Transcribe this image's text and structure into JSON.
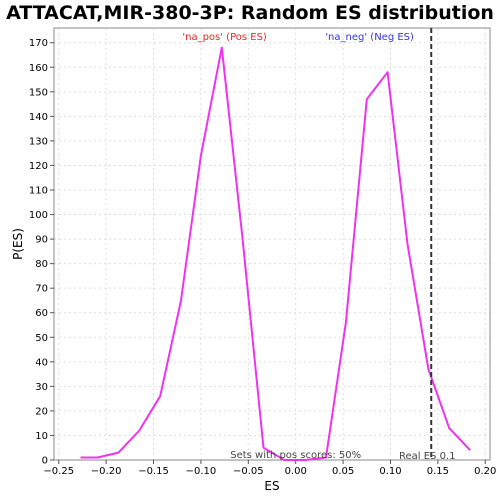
{
  "chart_data": {
    "type": "line",
    "title": "ATTACAT,MIR-380-3P: Random ES distribution",
    "xlabel": "ES",
    "ylabel": "P(ES)",
    "xlim": [
      -0.255,
      0.205
    ],
    "ylim": [
      0,
      176
    ],
    "x_ticks": [
      -0.25,
      -0.2,
      -0.15,
      -0.1,
      -0.05,
      0.0,
      0.05,
      0.1,
      0.15,
      0.2
    ],
    "x_tick_labels": [
      "−0.25",
      "−0.20",
      "−0.15",
      "−0.10",
      "−0.05",
      "0.00",
      "0.05",
      "0.10",
      "0.15",
      "0.20"
    ],
    "y_ticks": [
      0,
      10,
      20,
      30,
      40,
      50,
      60,
      70,
      80,
      90,
      100,
      110,
      120,
      130,
      140,
      150,
      160,
      170
    ],
    "grid": true,
    "series": [
      {
        "color": "#ee33ee",
        "x": [
          -0.227,
          -0.209,
          -0.187,
          -0.165,
          -0.143,
          -0.121,
          -0.1,
          -0.078,
          -0.056,
          -0.034,
          -0.012,
          0.01,
          0.032,
          0.053,
          0.075,
          0.097,
          0.118,
          0.14,
          0.162,
          0.184
        ],
        "y": [
          1,
          1,
          3,
          12,
          26,
          65,
          124,
          168,
          90,
          5,
          0,
          0,
          1,
          56,
          147,
          158,
          88,
          37,
          13,
          4
        ]
      }
    ],
    "annotations": {
      "pos_label": "'na_pos' (Pos ES)",
      "neg_label": "'na_neg' (Neg ES)",
      "sets_text": "Sets with pos scores: 50%",
      "real_es_text": "Real ES 0.1",
      "real_es_value": 0.143,
      "pos_color": "#ee2222",
      "neg_color": "#3333dd",
      "line_color": "#333333"
    }
  }
}
